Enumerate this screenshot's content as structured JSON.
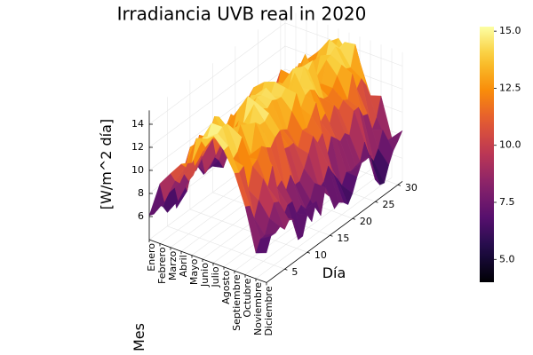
{
  "chart_data": {
    "type": "surface",
    "title": "Irradiancia UVB real in 2020",
    "xlabel": "Mes",
    "ylabel": "Día",
    "zlabel": "[W/m^2 día]",
    "x_tick_labels": [
      "Enero",
      "Febrero",
      "Marzo",
      "Abril",
      "Mayo",
      "Junio",
      "Julio",
      "Agosto",
      "Septiembre",
      "Octubre",
      "Noviembre",
      "Diciembre"
    ],
    "y_ticks": [
      5,
      10,
      15,
      20,
      25,
      30
    ],
    "z_ticks": [
      6,
      8,
      10,
      12,
      14
    ],
    "y_range": [
      1,
      31
    ],
    "z_range": [
      4.0,
      15.2
    ],
    "colorbar": {
      "ticks": [
        "5.0",
        "7.5",
        "10.0",
        "12.5",
        "15.0"
      ],
      "tick_values": [
        5.0,
        7.5,
        10.0,
        12.5,
        15.0
      ],
      "range": [
        4.0,
        15.2
      ],
      "colormap": "inferno"
    },
    "grid": true,
    "legend": "none",
    "monthly_mean_irradiance": [
      6.5,
      8.0,
      10.0,
      12.0,
      13.2,
      14.0,
      14.2,
      13.5,
      12.0,
      10.0,
      8.0,
      6.8
    ],
    "daily_fluctuation": 2.5
  }
}
